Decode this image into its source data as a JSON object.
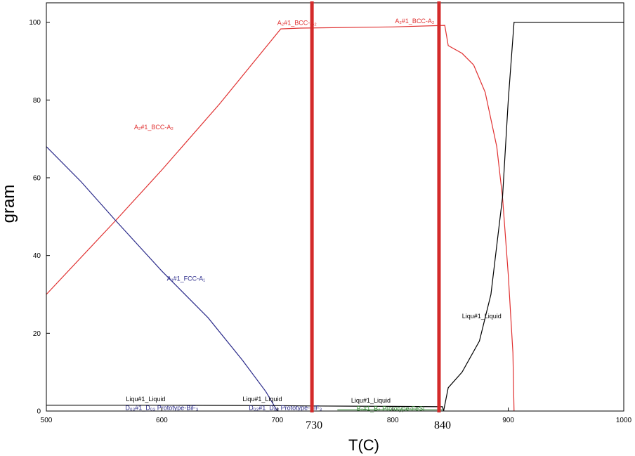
{
  "chart_data": {
    "type": "line",
    "xlabel": "T(C)",
    "ylabel": "gram",
    "xlim": [
      500,
      1000
    ],
    "ylim": [
      0,
      105
    ],
    "xticks": [
      500,
      600,
      700,
      800,
      900,
      1000
    ],
    "yticks": [
      0,
      20,
      40,
      60,
      80,
      100
    ],
    "grid": false,
    "legend": "none",
    "series": [
      {
        "color": "#e03030",
        "points": [
          [
            500,
            30
          ],
          [
            560,
            49
          ],
          [
            600,
            62
          ],
          [
            650,
            79
          ],
          [
            703,
            98.3
          ],
          [
            720,
            98.5
          ],
          [
            800,
            98.8
          ],
          [
            845,
            99.2
          ],
          [
            848,
            94
          ],
          [
            860,
            92
          ],
          [
            870,
            89
          ],
          [
            880,
            82
          ],
          [
            890,
            68
          ],
          [
            895,
            55
          ],
          [
            900,
            35
          ],
          [
            904,
            15
          ],
          [
            905,
            0
          ]
        ]
      },
      {
        "color": "#2a2a8a",
        "points": [
          [
            500,
            68
          ],
          [
            530,
            59
          ],
          [
            560,
            49
          ],
          [
            600,
            36
          ],
          [
            640,
            24
          ],
          [
            670,
            13
          ],
          [
            690,
            5
          ],
          [
            700,
            0
          ]
        ]
      },
      {
        "color": "#000000",
        "points": [
          [
            500,
            1.5
          ],
          [
            600,
            1.5
          ],
          [
            700,
            1.4
          ],
          [
            730,
            1.3
          ],
          [
            800,
            1.2
          ],
          [
            843,
            1.1
          ],
          [
            844,
            0
          ],
          [
            848,
            6
          ],
          [
            860,
            10
          ],
          [
            875,
            18
          ],
          [
            885,
            30
          ],
          [
            895,
            55
          ],
          [
            900,
            80
          ],
          [
            905,
            100
          ],
          [
            1000,
            100
          ]
        ]
      },
      {
        "color": "#3a8a3a",
        "points": [
          [
            752,
            0.3
          ],
          [
            843,
            0.3
          ]
        ]
      }
    ],
    "annotations": [
      {
        "text": "A₂#1_BCC-A₂",
        "x": 593,
        "y": 72.5,
        "color": "#e03030"
      },
      {
        "text": "A₂#1_BCC-A₂",
        "x": 717,
        "y": 99.3,
        "color": "#e03030"
      },
      {
        "text": "A₂#1_BCC-A₂",
        "x": 819,
        "y": 99.8,
        "color": "#e03030"
      },
      {
        "text": "A₁#1_FCC-A₁",
        "x": 621,
        "y": 33.5,
        "color": "#2a2a8a"
      },
      {
        "text": "Liqu#1_Liquid",
        "x": 586,
        "y": 2.5,
        "color": "#000000"
      },
      {
        "text": "Liqu#1_Liquid",
        "x": 687,
        "y": 2.5,
        "color": "#000000"
      },
      {
        "text": "Liqu#1_Liquid",
        "x": 781,
        "y": 2.2,
        "color": "#000000"
      },
      {
        "text": "Liqu#1_Liquid",
        "x": 877,
        "y": 23.9,
        "color": "#000000"
      },
      {
        "text": "D₀₃#1_D₀₃ Prototype-BiF₃",
        "x": 600,
        "y": 0.3,
        "color": "#2a2a8a"
      },
      {
        "text": "D₀₃#1_D₀₃ Prototype-BiF₃",
        "x": 707,
        "y": 0.3,
        "color": "#2a2a8a"
      },
      {
        "text": "B₂#1_B₂ Prototype-FeSi",
        "x": 798,
        "y": 0.1,
        "color": "#3a8a3a"
      }
    ],
    "markers": [
      {
        "x": 730,
        "label": "730",
        "color": "#d42a2a"
      },
      {
        "x": 840,
        "label": "840",
        "color": "#d42a2a"
      }
    ]
  }
}
